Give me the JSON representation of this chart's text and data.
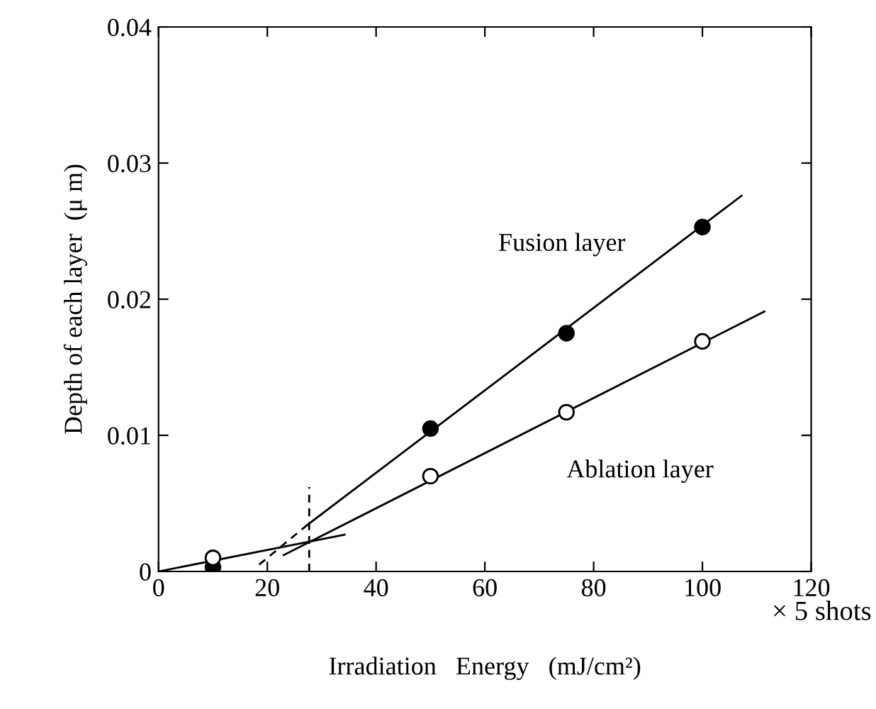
{
  "chart_data": {
    "type": "scatter",
    "xlabel": "Irradiation   Energy   (mJ/cm²)",
    "ylabel": "Depth of each layer  (μ m)",
    "annotations": [
      "× 5 shots"
    ],
    "xlim": [
      0,
      120
    ],
    "xticks": [
      0,
      20,
      40,
      60,
      80,
      100,
      120
    ],
    "ylim": [
      0,
      0.04
    ],
    "yticks": [
      0,
      0.01,
      0.02,
      0.03,
      0.04
    ],
    "grid": false,
    "legend": false,
    "marker": "circle",
    "series": [
      {
        "name": "Fusion layer",
        "color": "#000000",
        "x": [
          10,
          50,
          75,
          100
        ],
        "values": [
          0.0003,
          0.0105,
          0.0175,
          0.0253
        ]
      },
      {
        "name": "Ablation layer",
        "color": "#ffffff",
        "x": [
          10,
          50,
          75,
          100
        ],
        "values": [
          0.001,
          0.007,
          0.0117,
          0.0169
        ]
      },
      {
        "type": "line",
        "color": "#000000",
        "marker": "none",
        "line_style": "solid",
        "x": [
          27.3,
          107.2
        ],
        "values": [
          0.0034,
          0.0276
        ]
      },
      {
        "type": "line",
        "color": "#000000",
        "marker": "none",
        "line_style": "dashed",
        "x": [
          18.5,
          27.3
        ],
        "values": [
          0.0005,
          0.0034
        ]
      },
      {
        "type": "line",
        "color": "#000000",
        "marker": "none",
        "line_style": "solid",
        "x": [
          23,
          111.4
        ],
        "values": [
          0.0012,
          0.0191
        ]
      },
      {
        "type": "line",
        "color": "#000000",
        "marker": "none",
        "line_style": "solid",
        "x": [
          0,
          34.2
        ],
        "values": [
          0,
          0.0027
        ]
      },
      {
        "type": "line",
        "color": "#000000",
        "marker": "none",
        "line_style": "dashed",
        "x": [
          27.7,
          27.7
        ],
        "values": [
          0,
          0.0062
        ]
      }
    ]
  }
}
